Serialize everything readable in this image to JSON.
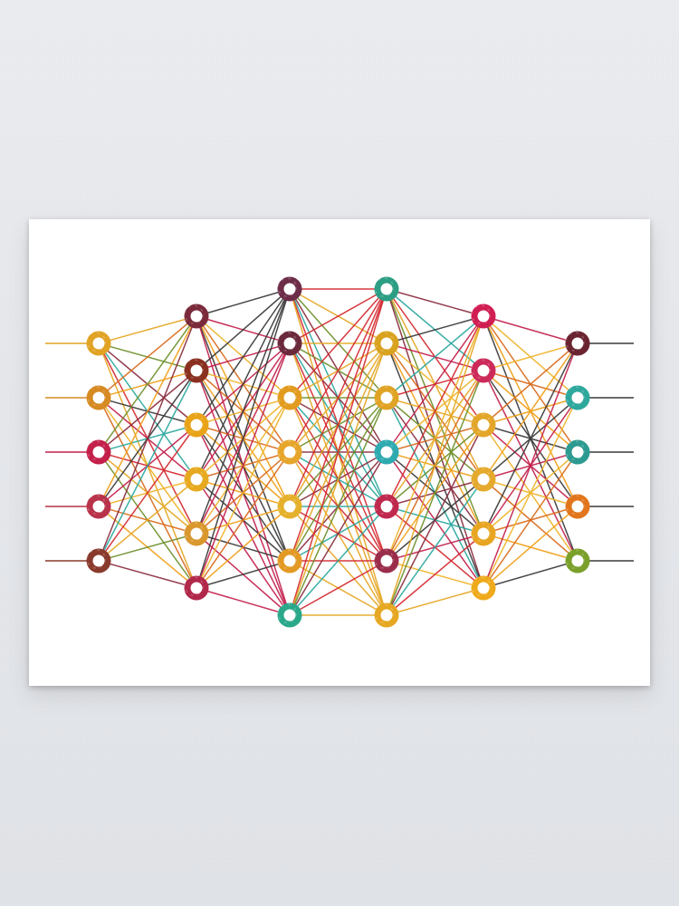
{
  "artwork": {
    "type": "neural network illustration",
    "style": "watercolor",
    "layers": [
      {
        "nodes": 5,
        "colors": [
          "#e1a324",
          "#d68a22",
          "#c3204a",
          "#b8324a",
          "#8a3a2c"
        ]
      },
      {
        "nodes": 6,
        "colors": [
          "#7a2a3a",
          "#8a3020",
          "#e8a317",
          "#e7a91f",
          "#d9982e",
          "#b0284a"
        ]
      },
      {
        "nodes": 7,
        "colors": [
          "#6d2c48",
          "#6b2a3c",
          "#e29b1e",
          "#e6a52b",
          "#e5b02a",
          "#e39a24",
          "#2aa88a"
        ]
      },
      {
        "nodes": 7,
        "colors": [
          "#2c9e84",
          "#d9a21f",
          "#e0a324",
          "#2eaab0",
          "#c0284e",
          "#9a2e4a",
          "#e6a722"
        ]
      },
      {
        "nodes": 6,
        "colors": [
          "#d01e52",
          "#cc2a5a",
          "#e3a62a",
          "#e5a92c",
          "#e8a521",
          "#efaa1c"
        ]
      },
      {
        "nodes": 5,
        "colors": [
          "#6a2430",
          "#2ea89c",
          "#2c9a90",
          "#e2761c",
          "#7aa02a"
        ]
      }
    ],
    "edge_palette": [
      "#e5a623",
      "#efb42a",
      "#d4282f",
      "#c21f4c",
      "#2aa89e",
      "#3a3a3a",
      "#8a2d3e",
      "#f0a018",
      "#6c8f2a",
      "#d86a1c"
    ]
  }
}
